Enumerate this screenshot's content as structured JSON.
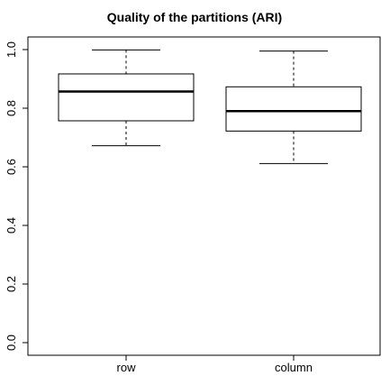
{
  "chart_data": {
    "type": "boxplot",
    "title": "Quality of the partitions (ARI)",
    "xlabel": "",
    "ylabel": "",
    "categories": [
      "row",
      "column"
    ],
    "ylim": [
      0.0,
      1.0
    ],
    "y_ticks": [
      "0.0",
      "0.2",
      "0.4",
      "0.6",
      "0.8",
      "1.0"
    ],
    "y_tick_values": [
      0.0,
      0.2,
      0.4,
      0.6,
      0.8,
      1.0
    ],
    "boxes": [
      {
        "category": "row",
        "min": 0.672,
        "q1": 0.757,
        "median": 0.857,
        "q3": 0.917,
        "max": 0.999
      },
      {
        "category": "column",
        "min": 0.611,
        "q1": 0.722,
        "median": 0.79,
        "q3": 0.873,
        "max": 0.995
      }
    ],
    "grid": false,
    "legend": "none",
    "colors": {
      "stroke": "#000000",
      "background": "#ffffff"
    }
  }
}
